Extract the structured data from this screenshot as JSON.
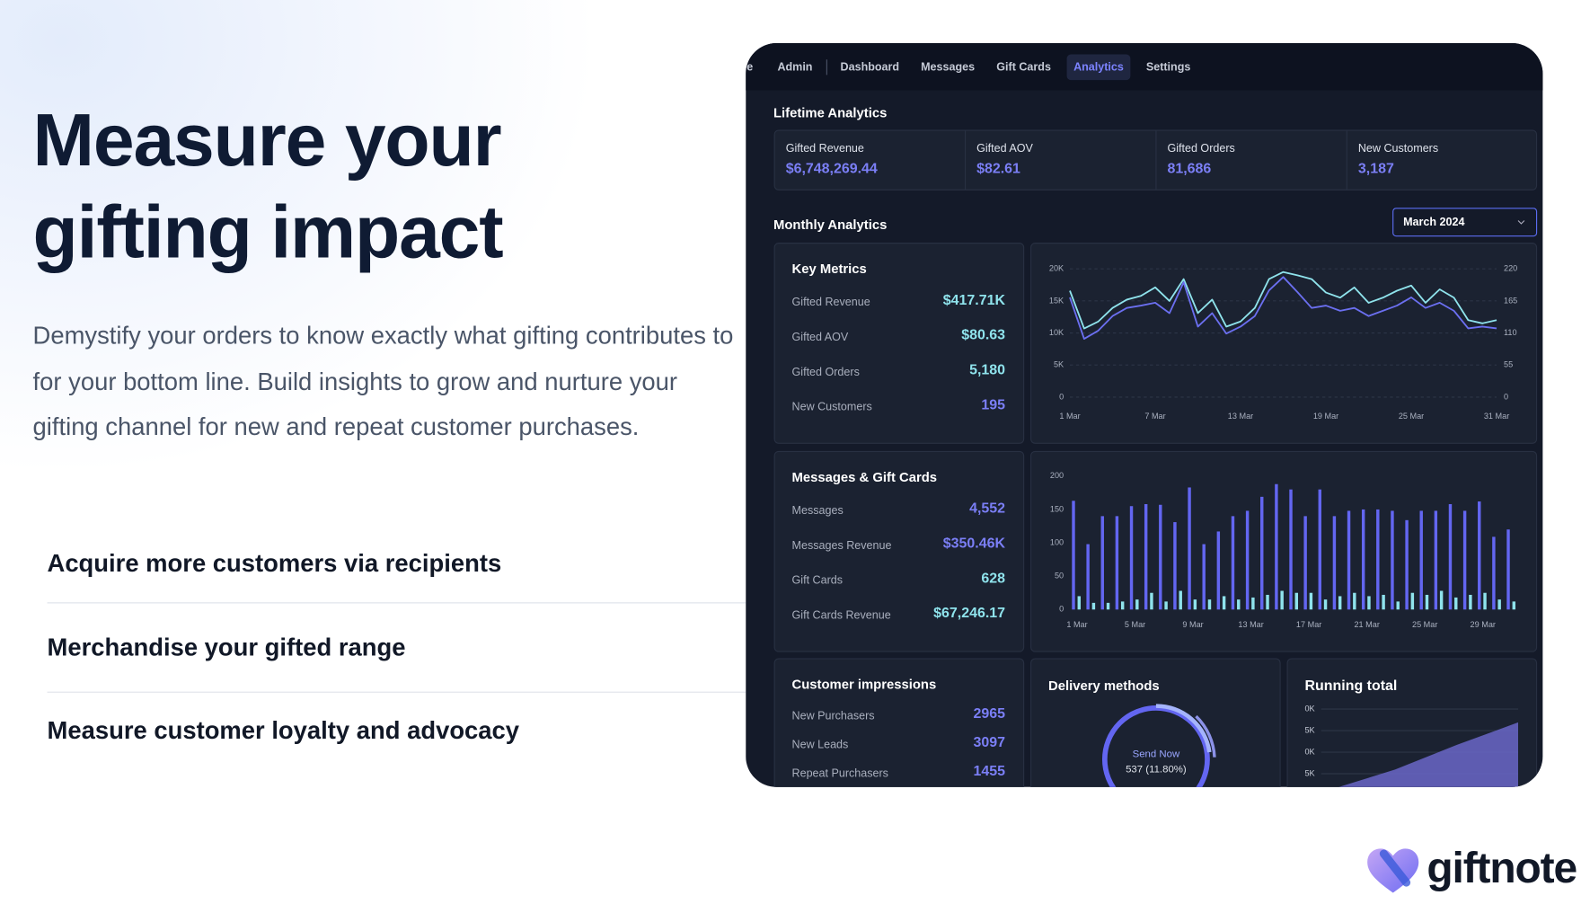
{
  "hero": {
    "title_lines": [
      "Measure your",
      "gifting impact"
    ],
    "paragraph": "Demystify your orders to know exactly what gifting contributes to for your bottom line. Build insights to grow and nurture your gifting channel for new and repeat customer purchases.",
    "features": [
      "Acquire more customers via recipients",
      "Merchandise your gifted range",
      "Measure customer loyalty and advocacy"
    ]
  },
  "logo": "giftnote",
  "dashboard": {
    "nav": {
      "cut_tab": "e",
      "tabs": [
        "Admin",
        "Dashboard",
        "Messages",
        "Gift Cards",
        "Analytics",
        "Settings"
      ],
      "active": "Analytics"
    },
    "lifetime": {
      "title": "Lifetime Analytics",
      "cards": [
        {
          "label": "Gifted Revenue",
          "value": "$6,748,269.44"
        },
        {
          "label": "Gifted AOV",
          "value": "$82.61"
        },
        {
          "label": "Gifted Orders",
          "value": "81,686"
        },
        {
          "label": "New Customers",
          "value": "3,187"
        }
      ]
    },
    "monthly": {
      "title": "Monthly Analytics",
      "period": "March 2024"
    },
    "key_metrics": {
      "title": "Key Metrics",
      "rows": [
        {
          "label": "Gifted Revenue",
          "value": "$417.71K",
          "color": "#8fe3ec"
        },
        {
          "label": "Gifted AOV",
          "value": "$80.63",
          "color": "#8fe3ec"
        },
        {
          "label": "Gifted Orders",
          "value": "5,180",
          "color": "#8fe3ec"
        },
        {
          "label": "New Customers",
          "value": "195",
          "color": "#7b7ff6"
        }
      ]
    },
    "messages_cards": {
      "title": "Messages & Gift Cards",
      "rows": [
        {
          "label": "Messages",
          "value": "4,552",
          "color": "#7b7ff6"
        },
        {
          "label": "Messages Revenue",
          "value": "$350.46K",
          "color": "#7b7ff6"
        },
        {
          "label": "Gift Cards",
          "value": "628",
          "color": "#8fe3ec"
        },
        {
          "label": "Gift Cards Revenue",
          "value": "$67,246.17",
          "color": "#8fe3ec"
        }
      ]
    },
    "impressions": {
      "title": "Customer impressions",
      "rows": [
        {
          "label": "New Purchasers",
          "value": "2965",
          "color": "#7b7ff6"
        },
        {
          "label": "New Leads",
          "value": "3097",
          "color": "#7b7ff6"
        },
        {
          "label": "Repeat Purchasers",
          "value": "1455",
          "color": "#7b7ff6"
        }
      ]
    },
    "delivery": {
      "title": "Delivery methods",
      "label": "Send Now",
      "detail": "537 (11.80%)"
    },
    "running_total": {
      "title": "Running total",
      "ticks": [
        "0K",
        "5K",
        "0K",
        "5K"
      ]
    }
  },
  "chart_data": [
    {
      "type": "line",
      "grid": true,
      "categories": [
        "1 Mar",
        null,
        null,
        null,
        null,
        null,
        "7 Mar",
        null,
        null,
        null,
        null,
        null,
        "13 Mar",
        null,
        null,
        null,
        null,
        null,
        "19 Mar",
        null,
        null,
        null,
        null,
        null,
        "25 Mar",
        null,
        null,
        null,
        null,
        null,
        "31 Mar"
      ],
      "series": [
        {
          "color": "#8fe3ec",
          "values": [
            16600,
            10700,
            11800,
            13900,
            15200,
            15800,
            17100,
            15000,
            18400,
            13100,
            15200,
            11000,
            11800,
            13900,
            18400,
            19500,
            19000,
            18400,
            16300,
            15500,
            17100,
            14700,
            15500,
            16600,
            17400,
            14700,
            16800,
            15500,
            12000,
            11500,
            12000
          ]
        },
        {
          "color": "#6b6ff0",
          "axis": "y2",
          "values": [
            171,
            100,
            114,
            139,
            153,
            157,
            162,
            144,
            197,
            121,
            144,
            109,
            121,
            139,
            183,
            206,
            180,
            153,
            157,
            148,
            153,
            139,
            148,
            157,
            171,
            153,
            162,
            148,
            118,
            121,
            118
          ]
        }
      ],
      "ylim": [
        0,
        20000
      ],
      "yticks": [
        0,
        {
          "value": 5000,
          "label": "5K"
        },
        {
          "value": 10000,
          "label": "10K"
        },
        {
          "value": 15000,
          "label": "15K"
        },
        {
          "value": 20000,
          "label": "20K"
        }
      ],
      "y2lim": [
        0,
        220
      ],
      "y2ticks": [
        0,
        55,
        110,
        165,
        220
      ]
    },
    {
      "type": "bar",
      "grid": false,
      "categories": [
        "1 Mar",
        null,
        null,
        null,
        "5 Mar",
        null,
        null,
        null,
        "9 Mar",
        null,
        null,
        null,
        "13 Mar",
        null,
        null,
        null,
        "17 Mar",
        null,
        null,
        null,
        "21 Mar",
        null,
        null,
        null,
        "25 Mar",
        null,
        null,
        null,
        "29 Mar",
        null,
        null
      ],
      "series": [
        {
          "color": "#6366f1",
          "values": [
            163,
            98,
            140,
            140,
            155,
            158,
            157,
            131,
            183,
            98,
            117,
            140,
            148,
            169,
            188,
            180,
            140,
            180,
            140,
            148,
            150,
            150,
            148,
            134,
            148,
            148,
            158,
            148,
            162,
            109,
            120
          ]
        },
        {
          "color": "#8fe3ec",
          "values": [
            20,
            10,
            10,
            12,
            15,
            25,
            12,
            28,
            15,
            15,
            20,
            15,
            18,
            22,
            28,
            25,
            25,
            15,
            20,
            25,
            20,
            22,
            12,
            25,
            22,
            28,
            18,
            22,
            25,
            15,
            12
          ]
        }
      ],
      "ylim": [
        0,
        200
      ],
      "yticks": [
        0,
        50,
        100,
        150,
        200
      ]
    }
  ]
}
